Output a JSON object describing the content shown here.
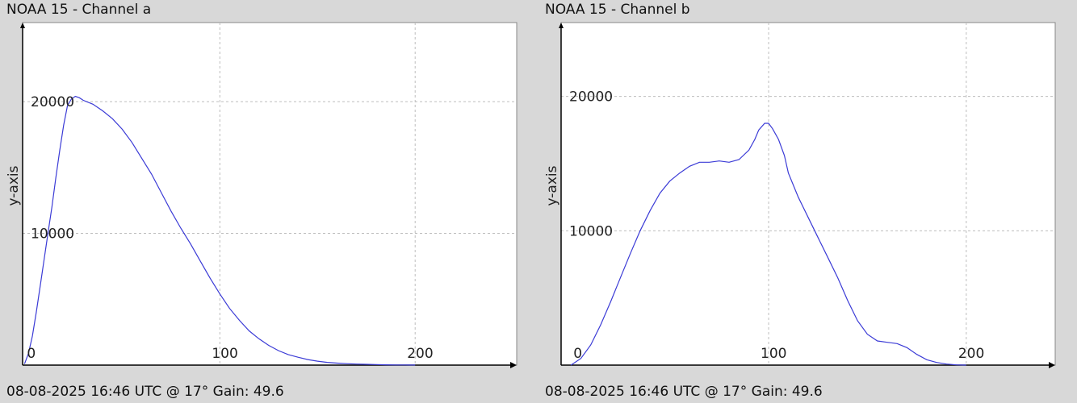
{
  "colors": {
    "background": "#d8d8d8",
    "plot_bg": "#ffffff",
    "line": "#3b3bd6",
    "grid": "#bdbdbd",
    "axis": "#000000"
  },
  "panels": [
    {
      "title": "NOAA 15 - Channel a",
      "footer": "08-08-2025 16:46 UTC @ 17° Gain: 49.6"
    },
    {
      "title": "NOAA 15 - Channel b",
      "footer": "08-08-2025 16:46 UTC @ 17° Gain: 49.6"
    }
  ],
  "chart_data": [
    {
      "type": "line",
      "title": "NOAA 15 - Channel a",
      "xlabel": "",
      "ylabel": "y-axis",
      "xlim": [
        -1,
        252
      ],
      "ylim": [
        0,
        26000
      ],
      "xticks": [
        0,
        100,
        200
      ],
      "yticks": [
        10000,
        20000
      ],
      "grid": true,
      "series": [
        {
          "x": [
            0,
            2,
            4,
            6,
            8,
            10,
            12,
            14,
            16,
            18,
            20,
            22,
            24,
            26,
            28,
            30,
            35,
            40,
            45,
            50,
            55,
            60,
            65,
            70,
            75,
            80,
            85,
            90,
            95,
            100,
            105,
            110,
            115,
            120,
            125,
            130,
            135,
            140,
            145,
            150,
            155,
            160,
            165,
            170,
            175,
            180,
            185,
            190,
            195,
            200
          ],
          "values": [
            100,
            900,
            2200,
            4000,
            6000,
            8000,
            10000,
            12000,
            14200,
            16300,
            18200,
            19700,
            20200,
            20400,
            20300,
            20100,
            19800,
            19300,
            18700,
            17900,
            16900,
            15700,
            14500,
            13100,
            11700,
            10400,
            9200,
            7900,
            6600,
            5400,
            4300,
            3400,
            2600,
            2000,
            1500,
            1100,
            800,
            600,
            420,
            300,
            210,
            150,
            110,
            80,
            60,
            40,
            25,
            15,
            10,
            5
          ]
        }
      ]
    },
    {
      "type": "line",
      "title": "NOAA 15 - Channel b",
      "xlabel": "",
      "ylabel": "y-axis",
      "xlim": [
        -5,
        245
      ],
      "ylim": [
        0,
        25500
      ],
      "xticks": [
        0,
        100,
        200
      ],
      "yticks": [
        10000,
        20000
      ],
      "grid": true,
      "series": [
        {
          "x": [
            0,
            5,
            10,
            15,
            20,
            25,
            30,
            35,
            40,
            45,
            50,
            55,
            60,
            65,
            70,
            75,
            80,
            85,
            90,
            93,
            95,
            98,
            100,
            102,
            105,
            108,
            110,
            115,
            120,
            125,
            130,
            135,
            140,
            145,
            150,
            155,
            160,
            165,
            170,
            175,
            180,
            185,
            190,
            195,
            200
          ],
          "values": [
            0,
            500,
            1500,
            3000,
            4700,
            6500,
            8300,
            10000,
            11500,
            12800,
            13700,
            14300,
            14800,
            15100,
            15100,
            15200,
            15100,
            15300,
            16000,
            16800,
            17500,
            18000,
            18000,
            17600,
            16800,
            15600,
            14300,
            12500,
            11000,
            9500,
            8000,
            6500,
            4800,
            3300,
            2300,
            1800,
            1700,
            1600,
            1300,
            800,
            400,
            200,
            80,
            20,
            0
          ]
        }
      ]
    }
  ]
}
